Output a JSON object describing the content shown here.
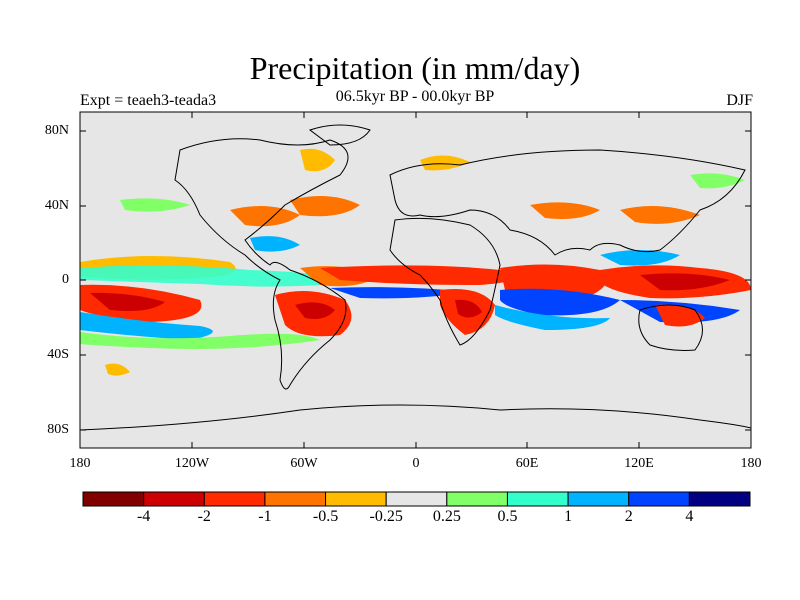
{
  "title": "Precipitation (in mm/day)",
  "subtitle": "06.5kyr BP - 00.0kyr BP",
  "experiment": "Expt = teaeh3-teada3",
  "season": "DJF",
  "lat_labels": [
    "80N",
    "40N",
    "0",
    "40S",
    "80S"
  ],
  "lon_labels": [
    "180",
    "120W",
    "60W",
    "0",
    "60E",
    "120E",
    "180"
  ],
  "colorbar": {
    "colors": [
      "#800000",
      "#cc0000",
      "#ff2a00",
      "#ff7300",
      "#ffbb00",
      "#e6e6e6",
      "#80ff66",
      "#33ffcc",
      "#00b3ff",
      "#0044ff",
      "#000080"
    ],
    "labels": [
      "-4",
      "-2",
      "-1",
      "-0.5",
      "-0.25",
      "0.25",
      "0.5",
      "1",
      "2",
      "4"
    ]
  }
}
